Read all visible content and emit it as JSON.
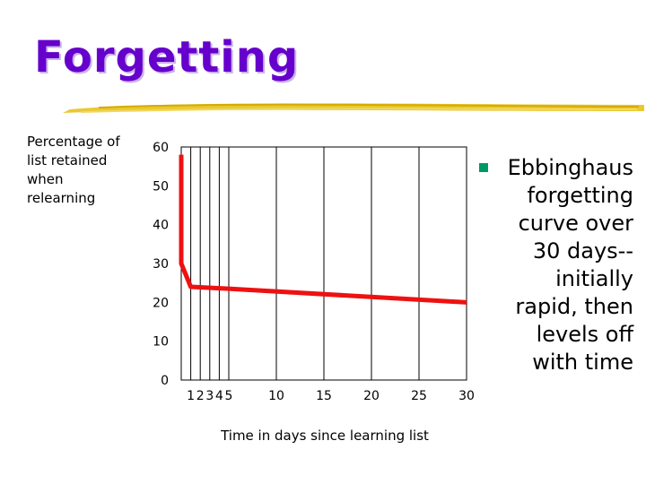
{
  "slide": {
    "title": "Forgetting",
    "bullet": "Ebbinghaus\nforgetting\ncurve over\n30 days--\ninitially\nrapid, then\nlevels off\nwith time",
    "accent_color": "#6600cc",
    "bullet_color": "#009966",
    "underline_color": "#e8c21a"
  },
  "chart_data": {
    "type": "line",
    "ylabel": "Percentage of\nlist retained\nwhen\nrelearning",
    "xlabel": "Time in days since learning list",
    "ylim": [
      0,
      60
    ],
    "yticks": [
      0,
      10,
      20,
      30,
      40,
      50,
      60
    ],
    "xlim": [
      0,
      30
    ],
    "xticks": [
      1,
      2,
      3,
      4,
      5,
      10,
      15,
      20,
      25,
      30
    ],
    "grid": "vertical",
    "line_color": "#ee1111",
    "series": [
      {
        "x": [
          0,
          0,
          1,
          5,
          30
        ],
        "y": [
          58,
          30,
          24,
          23.5,
          20
        ]
      }
    ]
  }
}
